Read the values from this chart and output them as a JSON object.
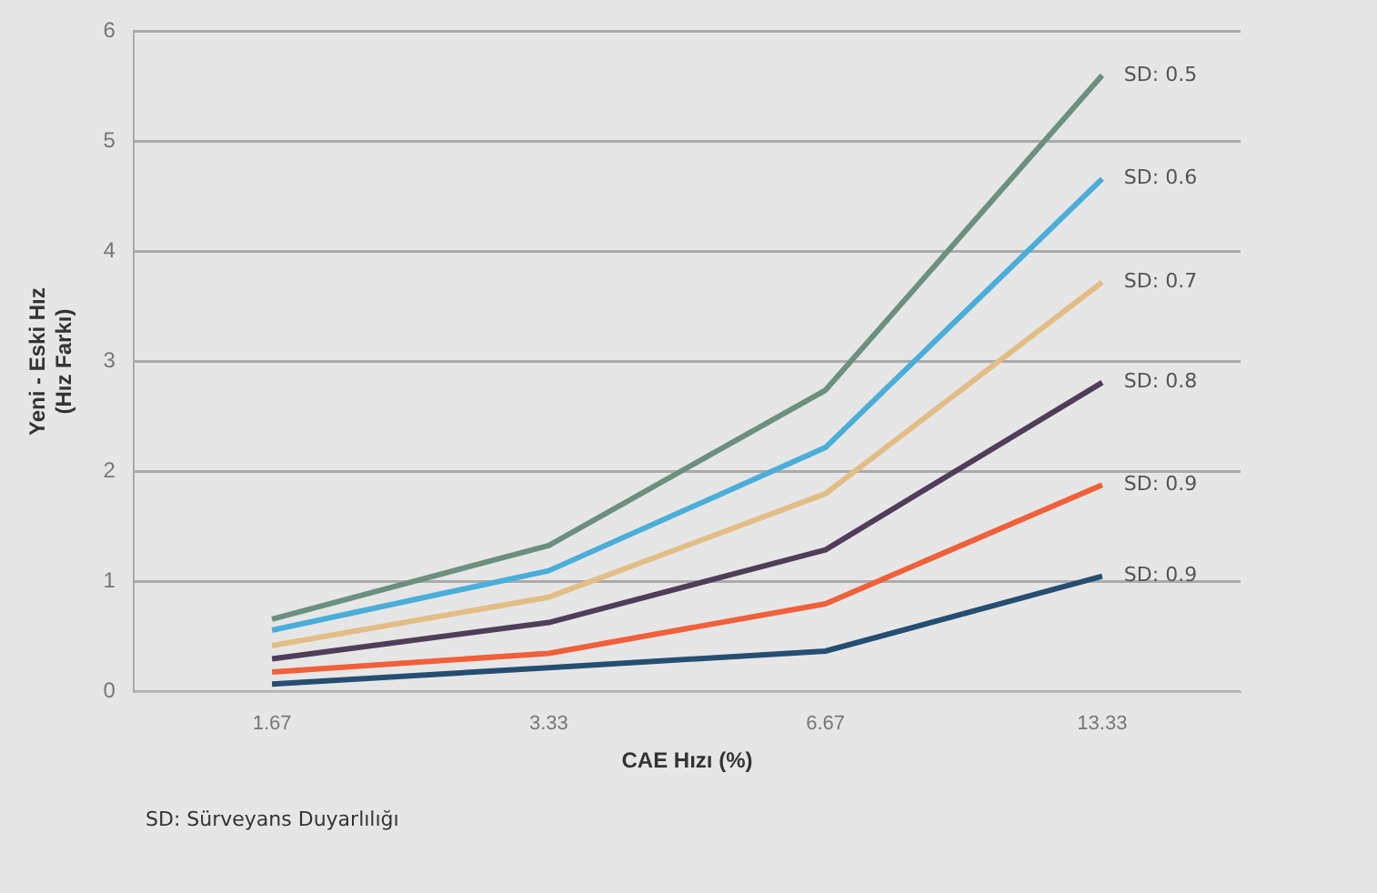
{
  "chart_data": {
    "type": "line",
    "xlabel": "CAE Hızı (%)",
    "ylabel": "Yeni - Eski Hız\n(Hız Farkı)",
    "categories": [
      "1.67",
      "3.33",
      "6.67",
      "13.33"
    ],
    "series": [
      {
        "name": "SD: 0.5",
        "color": "#6b9080",
        "values": [
          0.66,
          1.33,
          2.74,
          5.6
        ]
      },
      {
        "name": "SD: 0.6",
        "color": "#4aaed9",
        "values": [
          0.56,
          1.1,
          2.22,
          4.66
        ]
      },
      {
        "name": "SD: 0.7",
        "color": "#e2bd85",
        "values": [
          0.42,
          0.86,
          1.8,
          3.72
        ]
      },
      {
        "name": "SD: 0.8",
        "color": "#4f3d5a",
        "values": [
          0.3,
          0.63,
          1.29,
          2.81
        ]
      },
      {
        "name": "SD: 0.9",
        "color": "#f0603a",
        "values": [
          0.18,
          0.35,
          0.8,
          1.88
        ]
      },
      {
        "name": "SD: 0.9",
        "color": "#254e72",
        "values": [
          0.07,
          0.22,
          0.37,
          1.05
        ]
      }
    ],
    "ylim": [
      0,
      6
    ],
    "yticks": [
      0,
      1,
      2,
      3,
      4,
      5,
      6
    ],
    "grid": "y",
    "legend": false,
    "marker": "none",
    "line_style": "solid",
    "annotations": [
      "SD: Sürveyans Duyarlılığı"
    ]
  }
}
